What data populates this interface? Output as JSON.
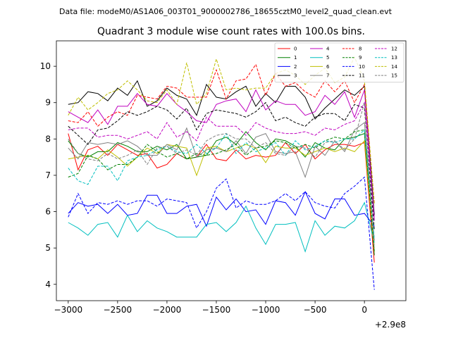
{
  "header_text": "Data file: modeM0/AS1A06_003T01_9000002786_18655cztM0_level2_quad_clean.evt",
  "chart_data": {
    "type": "line",
    "title": "Quadrant 3 module wise count rates with 100.0s bins.",
    "xlabel": "",
    "ylabel": "",
    "x_offset_label": "+2.9e8",
    "xlim": [
      -3120,
      420
    ],
    "ylim": [
      3.55,
      10.7
    ],
    "xticks": [
      -3000,
      -2500,
      -2000,
      -1500,
      -1000,
      -500,
      0
    ],
    "xtick_labels": [
      "−3000",
      "−2500",
      "−2000",
      "−1500",
      "−1000",
      "−500",
      "0"
    ],
    "yticks": [
      4,
      5,
      6,
      7,
      8,
      9,
      10
    ],
    "ytick_labels": [
      "4",
      "5",
      "6",
      "7",
      "8",
      "9",
      "10"
    ],
    "grid": false,
    "legend_position": "top-right",
    "legend_columns": 4,
    "x": [
      -3000,
      -2900,
      -2800,
      -2700,
      -2600,
      -2500,
      -2400,
      -2300,
      -2200,
      -2100,
      -2000,
      -1900,
      -1800,
      -1700,
      -1600,
      -1500,
      -1400,
      -1300,
      -1200,
      -1100,
      -1000,
      -900,
      -800,
      -700,
      -600,
      -500,
      -400,
      -300,
      -200,
      -100,
      0,
      100
    ],
    "series": [
      {
        "name": "0",
        "color": "#ff0000",
        "dash": "solid",
        "values": [
          8.15,
          7.15,
          7.7,
          7.8,
          7.55,
          7.85,
          7.7,
          7.55,
          7.6,
          7.2,
          7.3,
          7.6,
          7.45,
          7.5,
          7.85,
          7.45,
          7.4,
          7.7,
          7.45,
          7.55,
          7.5,
          7.55,
          7.9,
          7.6,
          7.85,
          7.45,
          7.7,
          7.85,
          7.85,
          7.8,
          7.9,
          4.6
        ]
      },
      {
        "name": "1",
        "color": "#008000",
        "dash": "solid",
        "values": [
          7.95,
          7.6,
          7.5,
          7.65,
          7.65,
          7.9,
          7.8,
          7.65,
          7.65,
          7.8,
          7.7,
          7.85,
          7.45,
          7.5,
          7.55,
          7.95,
          8.05,
          7.85,
          8.2,
          7.9,
          7.7,
          8.0,
          7.95,
          7.8,
          7.5,
          7.9,
          7.75,
          7.7,
          8.0,
          8.05,
          8.15,
          4.8
        ]
      },
      {
        "name": "2",
        "color": "#0000ff",
        "dash": "solid",
        "values": [
          5.95,
          6.25,
          6.15,
          6.2,
          5.95,
          6.2,
          5.9,
          5.95,
          6.45,
          6.45,
          5.95,
          5.95,
          6.15,
          6.2,
          5.6,
          6.4,
          6.05,
          6.35,
          6.0,
          6.05,
          5.65,
          6.3,
          6.25,
          5.9,
          6.55,
          5.95,
          5.8,
          6.35,
          6.35,
          5.9,
          5.95,
          5.6
        ]
      },
      {
        "name": "3",
        "color": "#000000",
        "dash": "solid",
        "values": [
          8.95,
          9.0,
          9.3,
          9.25,
          9.05,
          9.4,
          9.2,
          9.6,
          8.9,
          9.05,
          9.4,
          9.2,
          9.1,
          8.65,
          9.5,
          9.15,
          9.1,
          9.3,
          9.45,
          8.9,
          9.25,
          9.0,
          9.45,
          9.45,
          9.15,
          8.55,
          8.85,
          9.1,
          9.35,
          9.2,
          9.45,
          5.9
        ]
      },
      {
        "name": "4",
        "color": "#bf00bf",
        "dash": "solid",
        "values": [
          8.75,
          8.6,
          8.45,
          8.8,
          8.4,
          8.9,
          8.9,
          9.25,
          8.95,
          8.9,
          9.25,
          8.95,
          8.75,
          8.5,
          8.45,
          8.95,
          9.05,
          9.1,
          8.75,
          9.35,
          8.8,
          9.05,
          8.95,
          8.95,
          8.65,
          8.75,
          9.2,
          8.95,
          9.3,
          8.6,
          9.35,
          5.75
        ]
      },
      {
        "name": "5",
        "color": "#00bfbf",
        "dash": "solid",
        "values": [
          5.7,
          5.55,
          5.35,
          5.65,
          5.7,
          5.3,
          5.9,
          5.45,
          5.75,
          5.55,
          5.45,
          5.3,
          5.3,
          5.3,
          5.65,
          5.7,
          5.45,
          5.7,
          6.15,
          5.55,
          5.1,
          5.65,
          5.65,
          5.7,
          4.9,
          5.75,
          5.35,
          5.6,
          5.55,
          5.75,
          6.25,
          5.15
        ]
      },
      {
        "name": "6",
        "color": "#bfbf00",
        "dash": "solid",
        "values": [
          7.45,
          7.5,
          7.55,
          7.45,
          7.7,
          7.5,
          7.25,
          7.5,
          7.75,
          7.6,
          7.85,
          7.8,
          7.75,
          7.0,
          7.75,
          7.8,
          7.65,
          7.75,
          7.85,
          7.75,
          7.35,
          7.8,
          7.75,
          7.75,
          7.55,
          7.65,
          7.75,
          7.65,
          7.75,
          7.65,
          7.95,
          4.9
        ]
      },
      {
        "name": "7",
        "color": "#808080",
        "dash": "solid",
        "values": [
          7.75,
          7.45,
          7.9,
          7.85,
          7.9,
          7.85,
          7.95,
          7.8,
          7.55,
          7.55,
          7.85,
          7.7,
          8.3,
          7.5,
          7.7,
          7.75,
          7.65,
          7.95,
          7.6,
          8.05,
          8.15,
          7.65,
          7.6,
          7.65,
          6.95,
          7.8,
          7.55,
          7.95,
          7.65,
          8.25,
          8.45,
          5.2
        ]
      },
      {
        "name": "8",
        "color": "#ff0000",
        "dash": "dashed",
        "values": [
          8.5,
          8.45,
          8.75,
          8.35,
          8.6,
          8.75,
          8.65,
          9.2,
          9.15,
          9.1,
          9.45,
          9.4,
          9.15,
          9.15,
          9.15,
          9.9,
          9.1,
          9.6,
          9.65,
          10.05,
          9.2,
          9.8,
          9.45,
          9.55,
          9.3,
          9.15,
          9.6,
          9.3,
          9.6,
          9.0,
          9.5,
          6.25
        ]
      },
      {
        "name": "9",
        "color": "#008000",
        "dash": "dashed",
        "values": [
          6.95,
          7.05,
          7.55,
          7.45,
          7.15,
          7.3,
          7.3,
          7.5,
          7.85,
          7.65,
          7.5,
          7.6,
          7.45,
          7.6,
          7.55,
          7.6,
          7.7,
          7.85,
          7.55,
          7.75,
          7.8,
          7.95,
          7.9,
          7.75,
          7.85,
          7.75,
          7.95,
          8.05,
          8.0,
          8.2,
          8.25,
          4.9
        ]
      },
      {
        "name": "10",
        "color": "#0000ff",
        "dash": "dashed",
        "values": [
          5.85,
          6.5,
          5.95,
          6.25,
          6.2,
          6.3,
          6.2,
          6.3,
          6.3,
          6.15,
          6.35,
          6.3,
          6.25,
          5.55,
          6.0,
          6.65,
          6.9,
          6.1,
          6.3,
          6.2,
          6.2,
          6.3,
          6.5,
          6.3,
          6.55,
          6.25,
          6.15,
          6.1,
          6.5,
          6.7,
          6.95,
          3.85
        ]
      },
      {
        "name": "11",
        "color": "#000000",
        "dash": "dashed",
        "values": [
          8.35,
          8.1,
          7.85,
          8.25,
          8.3,
          8.5,
          8.75,
          8.65,
          8.75,
          8.9,
          8.8,
          8.55,
          8.85,
          8.25,
          8.7,
          8.8,
          8.75,
          8.7,
          8.6,
          8.75,
          9.0,
          8.5,
          8.6,
          8.45,
          8.35,
          8.6,
          8.7,
          8.7,
          8.5,
          8.95,
          8.85,
          5.5
        ]
      },
      {
        "name": "12",
        "color": "#bf00bf",
        "dash": "dashed",
        "values": [
          8.25,
          8.3,
          8.3,
          8.05,
          8.1,
          8.1,
          8.0,
          8.1,
          8.2,
          8.0,
          8.45,
          8.05,
          8.2,
          7.95,
          8.6,
          8.35,
          8.35,
          8.35,
          8.1,
          8.45,
          8.3,
          8.2,
          8.15,
          8.15,
          8.2,
          8.1,
          8.3,
          8.25,
          8.4,
          8.5,
          9.0,
          5.8
        ]
      },
      {
        "name": "13",
        "color": "#00bfbf",
        "dash": "dashed",
        "values": [
          7.2,
          6.85,
          6.75,
          7.25,
          7.25,
          6.85,
          7.4,
          7.5,
          7.55,
          7.7,
          7.8,
          7.65,
          7.6,
          7.85,
          7.6,
          7.75,
          8.15,
          7.6,
          7.9,
          7.65,
          7.75,
          7.9,
          7.55,
          7.95,
          7.7,
          7.8,
          7.95,
          7.9,
          8.0,
          8.0,
          8.25,
          5.25
        ]
      },
      {
        "name": "14",
        "color": "#bfbf00",
        "dash": "dashed",
        "values": [
          8.65,
          9.15,
          8.8,
          9.0,
          9.25,
          9.35,
          9.6,
          9.35,
          9.05,
          9.0,
          9.35,
          8.95,
          10.1,
          8.95,
          9.25,
          10.2,
          9.35,
          9.4,
          9.35,
          9.4,
          9.4,
          9.8,
          9.9,
          9.75,
          9.5,
          9.75,
          9.95,
          9.55,
          9.7,
          10.25,
          9.6,
          6.2
        ]
      },
      {
        "name": "15",
        "color": "#808080",
        "dash": "dashed",
        "values": [
          8.0,
          7.6,
          7.45,
          7.4,
          7.6,
          7.45,
          7.55,
          7.7,
          7.3,
          7.75,
          7.8,
          7.6,
          7.7,
          7.55,
          7.95,
          8.1,
          8.15,
          8.0,
          8.0,
          7.75,
          7.9,
          7.6,
          7.55,
          7.8,
          7.75,
          7.5,
          7.9,
          7.95,
          7.7,
          8.0,
          9.0,
          5.0
        ]
      }
    ]
  }
}
